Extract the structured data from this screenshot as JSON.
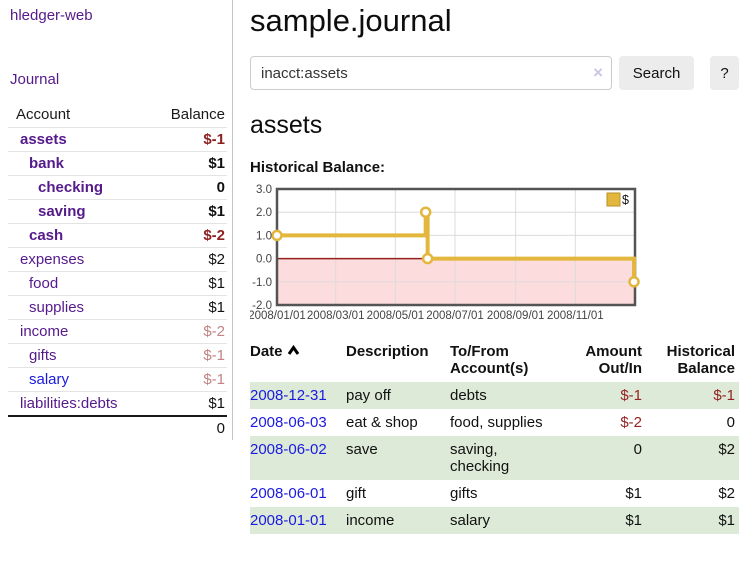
{
  "app": {
    "title": "hledger-web",
    "nav_journal": "Journal"
  },
  "sidebar": {
    "col_account": "Account",
    "col_balance": "Balance",
    "accounts": [
      {
        "name": "assets",
        "balance": "$-1"
      },
      {
        "name": "bank",
        "balance": "$1"
      },
      {
        "name": "checking",
        "balance": "0"
      },
      {
        "name": "saving",
        "balance": "$1"
      },
      {
        "name": "cash",
        "balance": "$-2"
      },
      {
        "name": "expenses",
        "balance": "$2"
      },
      {
        "name": "food",
        "balance": "$1"
      },
      {
        "name": "supplies",
        "balance": "$1"
      },
      {
        "name": "income",
        "balance": "$-2"
      },
      {
        "name": "gifts",
        "balance": "$-1"
      },
      {
        "name": "salary",
        "balance": "$-1"
      },
      {
        "name": "liabilities:debts",
        "balance": "$1"
      }
    ],
    "total": "0"
  },
  "header": {
    "title": "sample.journal"
  },
  "search": {
    "value": "inacct:assets",
    "clear_label": "×",
    "button_label": "Search",
    "help_label": "?"
  },
  "account_page": {
    "title": "assets",
    "chart_label": "Historical Balance:"
  },
  "chart_data": {
    "type": "line",
    "title": "Historical Balance",
    "steps": true,
    "series": [
      {
        "name": "$",
        "color": "#e3b63e",
        "points": [
          [
            "2008-01-01",
            1
          ],
          [
            "2008-06-01",
            2
          ],
          [
            "2008-06-03",
            0
          ],
          [
            "2008-12-31",
            -1
          ]
        ]
      }
    ],
    "xlim": [
      "2008-01-01",
      "2009-01-01"
    ],
    "ylim": [
      -2,
      3
    ],
    "xticks": [
      "2008/01/01",
      "2008/03/01",
      "2008/05/01",
      "2008/07/01",
      "2008/09/01",
      "2008/11/01"
    ],
    "yticks": [
      3,
      2,
      1,
      0,
      -1,
      -2
    ],
    "ytick_labels": [
      "3.0",
      "2.0",
      "1.0",
      "0.0",
      "-1.0",
      "-2.0"
    ],
    "grid": true,
    "legend_position": "top-right",
    "negative_region_fill": "#fcdcdc",
    "zero_line_color": "#941f1f",
    "grid_color": "#dcdcdc",
    "border_color": "#545454"
  },
  "register": {
    "columns": {
      "date": "Date",
      "description": "Description",
      "accounts": "To/From Account(s)",
      "amount": "Amount Out/In",
      "balance": "Historical Balance"
    },
    "rows": [
      {
        "date": "2008-12-31",
        "description": "pay off",
        "accounts": "debts",
        "amount": "$-1",
        "balance": "$-1"
      },
      {
        "date": "2008-06-03",
        "description": "eat & shop",
        "accounts": "food, supplies",
        "amount": "$-2",
        "balance": "0"
      },
      {
        "date": "2008-06-02",
        "description": "save",
        "accounts": "saving, checking",
        "amount": "0",
        "balance": "$2"
      },
      {
        "date": "2008-06-01",
        "description": "gift",
        "accounts": "gifts",
        "amount": "$1",
        "balance": "$2"
      },
      {
        "date": "2008-01-01",
        "description": "income",
        "accounts": "salary",
        "amount": "$1",
        "balance": "$1"
      }
    ]
  },
  "colors": {
    "link_purple": "#551A8B",
    "link_blue": "#1a1ae0",
    "negative_strong": "#8e1f1f",
    "negative_soft": "#c08484",
    "row_stripe_green": "#dcead7",
    "button_gray": "#ececec"
  }
}
